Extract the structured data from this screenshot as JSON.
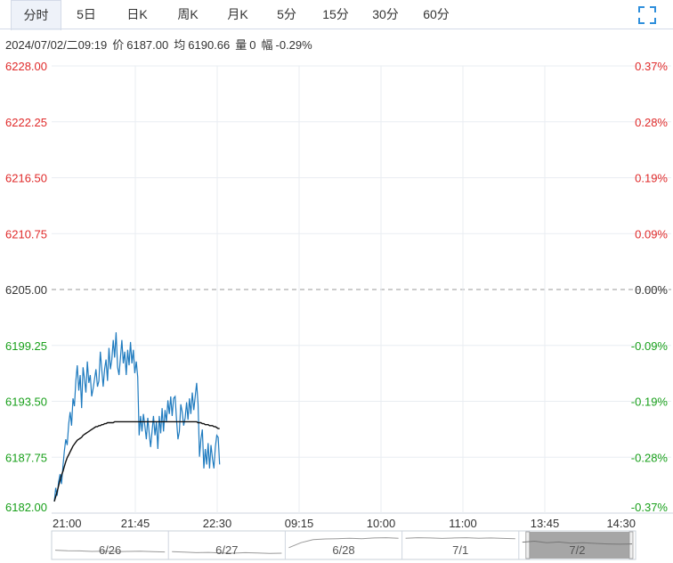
{
  "tabs": {
    "items": [
      "分时",
      "5日",
      "日K",
      "周K",
      "月K",
      "5分",
      "15分",
      "30分",
      "60分"
    ],
    "active_index": 0
  },
  "info": {
    "datetime": "2024/07/02/二09:19",
    "price_label": "价",
    "price": "6187.00",
    "avg_label": "均",
    "avg": "6190.66",
    "vol_label": "量",
    "vol": "0",
    "change_label": "幅",
    "change": "-0.29%"
  },
  "colors": {
    "up": "#e02b2b",
    "down": "#19a01b",
    "flat": "#333333",
    "price_line": "#1f7bbf",
    "avg_line": "#111111",
    "grid": "#e9edf2",
    "accent": "#2f8fdc"
  },
  "chart_data": {
    "type": "line",
    "title": "",
    "xlabel": "",
    "ylabel": "",
    "prev_close": 6205.0,
    "ylim": [
      6182.0,
      6228.0
    ],
    "y_ticks": [
      "6228.00",
      "6222.25",
      "6216.50",
      "6210.75",
      "6205.00",
      "6199.25",
      "6193.50",
      "6187.75",
      "6182.00"
    ],
    "pct_ticks": [
      "0.37%",
      "0.28%",
      "0.19%",
      "0.09%",
      "0.00%",
      "-0.09%",
      "-0.19%",
      "-0.28%",
      "-0.37%"
    ],
    "x_ticks": [
      "21:00",
      "21:45",
      "22:30",
      "09:15",
      "10:00",
      "11:00",
      "13:45",
      "14:30"
    ],
    "grid": true,
    "series": [
      {
        "key": "price",
        "values": [
          6183.2,
          6184.6,
          6183.8,
          6185.2,
          6186.0,
          6185.0,
          6186.8,
          6188.4,
          6189.6,
          6189.0,
          6191.2,
          6192.4,
          6191.0,
          6193.8,
          6193.0,
          6195.6,
          6197.2,
          6194.6,
          6196.2,
          6192.8,
          6197.0,
          6195.8,
          6194.4,
          6197.6,
          6195.4,
          6196.2,
          6194.0,
          6194.8,
          6195.8,
          6196.8,
          6195.0,
          6195.6,
          6198.6,
          6196.8,
          6195.0,
          6196.8,
          6197.8,
          6195.6,
          6199.0,
          6196.8,
          6197.8,
          6199.8,
          6198.0,
          6200.6,
          6197.0,
          6196.2,
          6198.0,
          6199.8,
          6197.4,
          6198.6,
          6196.2,
          6198.8,
          6197.2,
          6199.6,
          6197.4,
          6198.8,
          6196.4,
          6197.6,
          6196.0,
          6190.0,
          6192.0,
          6190.4,
          6192.2,
          6191.0,
          6189.6,
          6191.8,
          6190.2,
          6188.8,
          6190.4,
          6192.0,
          6190.0,
          6191.4,
          6188.6,
          6192.0,
          6190.2,
          6192.8,
          6190.4,
          6192.6,
          6191.4,
          6193.6,
          6192.2,
          6194.0,
          6192.0,
          6193.8,
          6194.0,
          6191.6,
          6189.6,
          6190.4,
          6193.2,
          6192.4,
          6191.0,
          6191.8,
          6193.4,
          6191.6,
          6193.8,
          6192.2,
          6194.4,
          6192.6,
          6194.0,
          6195.4,
          6193.2,
          6187.8,
          6189.6,
          6190.6,
          6186.6,
          6188.6,
          6187.0,
          6189.2,
          6186.6,
          6189.0,
          6187.6,
          6186.6,
          6188.8,
          6190.0,
          6189.8,
          6187.0
        ]
      },
      {
        "key": "avg",
        "values": [
          6183.2,
          6183.7,
          6184.2,
          6184.8,
          6185.4,
          6185.9,
          6186.3,
          6186.8,
          6187.3,
          6187.7,
          6188.0,
          6188.3,
          6188.6,
          6188.9,
          6189.1,
          6189.3,
          6189.5,
          6189.6,
          6189.7,
          6189.8,
          6190.0,
          6190.1,
          6190.2,
          6190.3,
          6190.4,
          6190.5,
          6190.6,
          6190.7,
          6190.8,
          6190.9,
          6190.9,
          6191.0,
          6191.0,
          6191.1,
          6191.1,
          6191.2,
          6191.2,
          6191.3,
          6191.3,
          6191.3,
          6191.3,
          6191.3,
          6191.4,
          6191.4,
          6191.4,
          6191.4,
          6191.4,
          6191.4,
          6191.4,
          6191.4,
          6191.4,
          6191.4,
          6191.4,
          6191.4,
          6191.4,
          6191.4,
          6191.4,
          6191.4,
          6191.4,
          6191.4,
          6191.4,
          6191.4,
          6191.4,
          6191.4,
          6191.4,
          6191.4,
          6191.4,
          6191.4,
          6191.4,
          6191.4,
          6191.4,
          6191.4,
          6191.4,
          6191.4,
          6191.4,
          6191.4,
          6191.4,
          6191.4,
          6191.4,
          6191.4,
          6191.4,
          6191.4,
          6191.4,
          6191.4,
          6191.4,
          6191.4,
          6191.4,
          6191.4,
          6191.4,
          6191.4,
          6191.4,
          6191.4,
          6191.4,
          6191.4,
          6191.4,
          6191.4,
          6191.4,
          6191.4,
          6191.4,
          6191.4,
          6191.3,
          6191.3,
          6191.3,
          6191.2,
          6191.2,
          6191.1,
          6191.1,
          6191.1,
          6191.0,
          6191.0,
          6191.0,
          6190.9,
          6190.9,
          6190.8,
          6190.7,
          6190.7
        ]
      }
    ],
    "total_slots": 400
  },
  "navigator": {
    "labels": [
      "6/26",
      "6/27",
      "6/28",
      "7/1",
      "7/2"
    ],
    "selected_index": 4,
    "levels": [
      [
        0.3,
        0.28,
        0.27,
        0.25,
        0.26,
        0.24,
        0.25,
        0.26,
        0.24,
        0.23
      ],
      [
        0.24,
        0.22,
        0.2,
        0.21,
        0.19,
        0.18,
        0.2,
        0.19,
        0.17,
        0.18
      ],
      [
        0.4,
        0.6,
        0.72,
        0.75,
        0.76,
        0.78,
        0.76,
        0.79,
        0.8,
        0.78
      ],
      [
        0.78,
        0.8,
        0.79,
        0.77,
        0.79,
        0.8,
        0.78,
        0.79,
        0.77,
        0.76
      ],
      [
        0.62,
        0.66,
        0.6,
        0.63,
        0.58,
        0.6,
        0.57,
        0.55,
        0.54,
        0.55
      ]
    ]
  }
}
